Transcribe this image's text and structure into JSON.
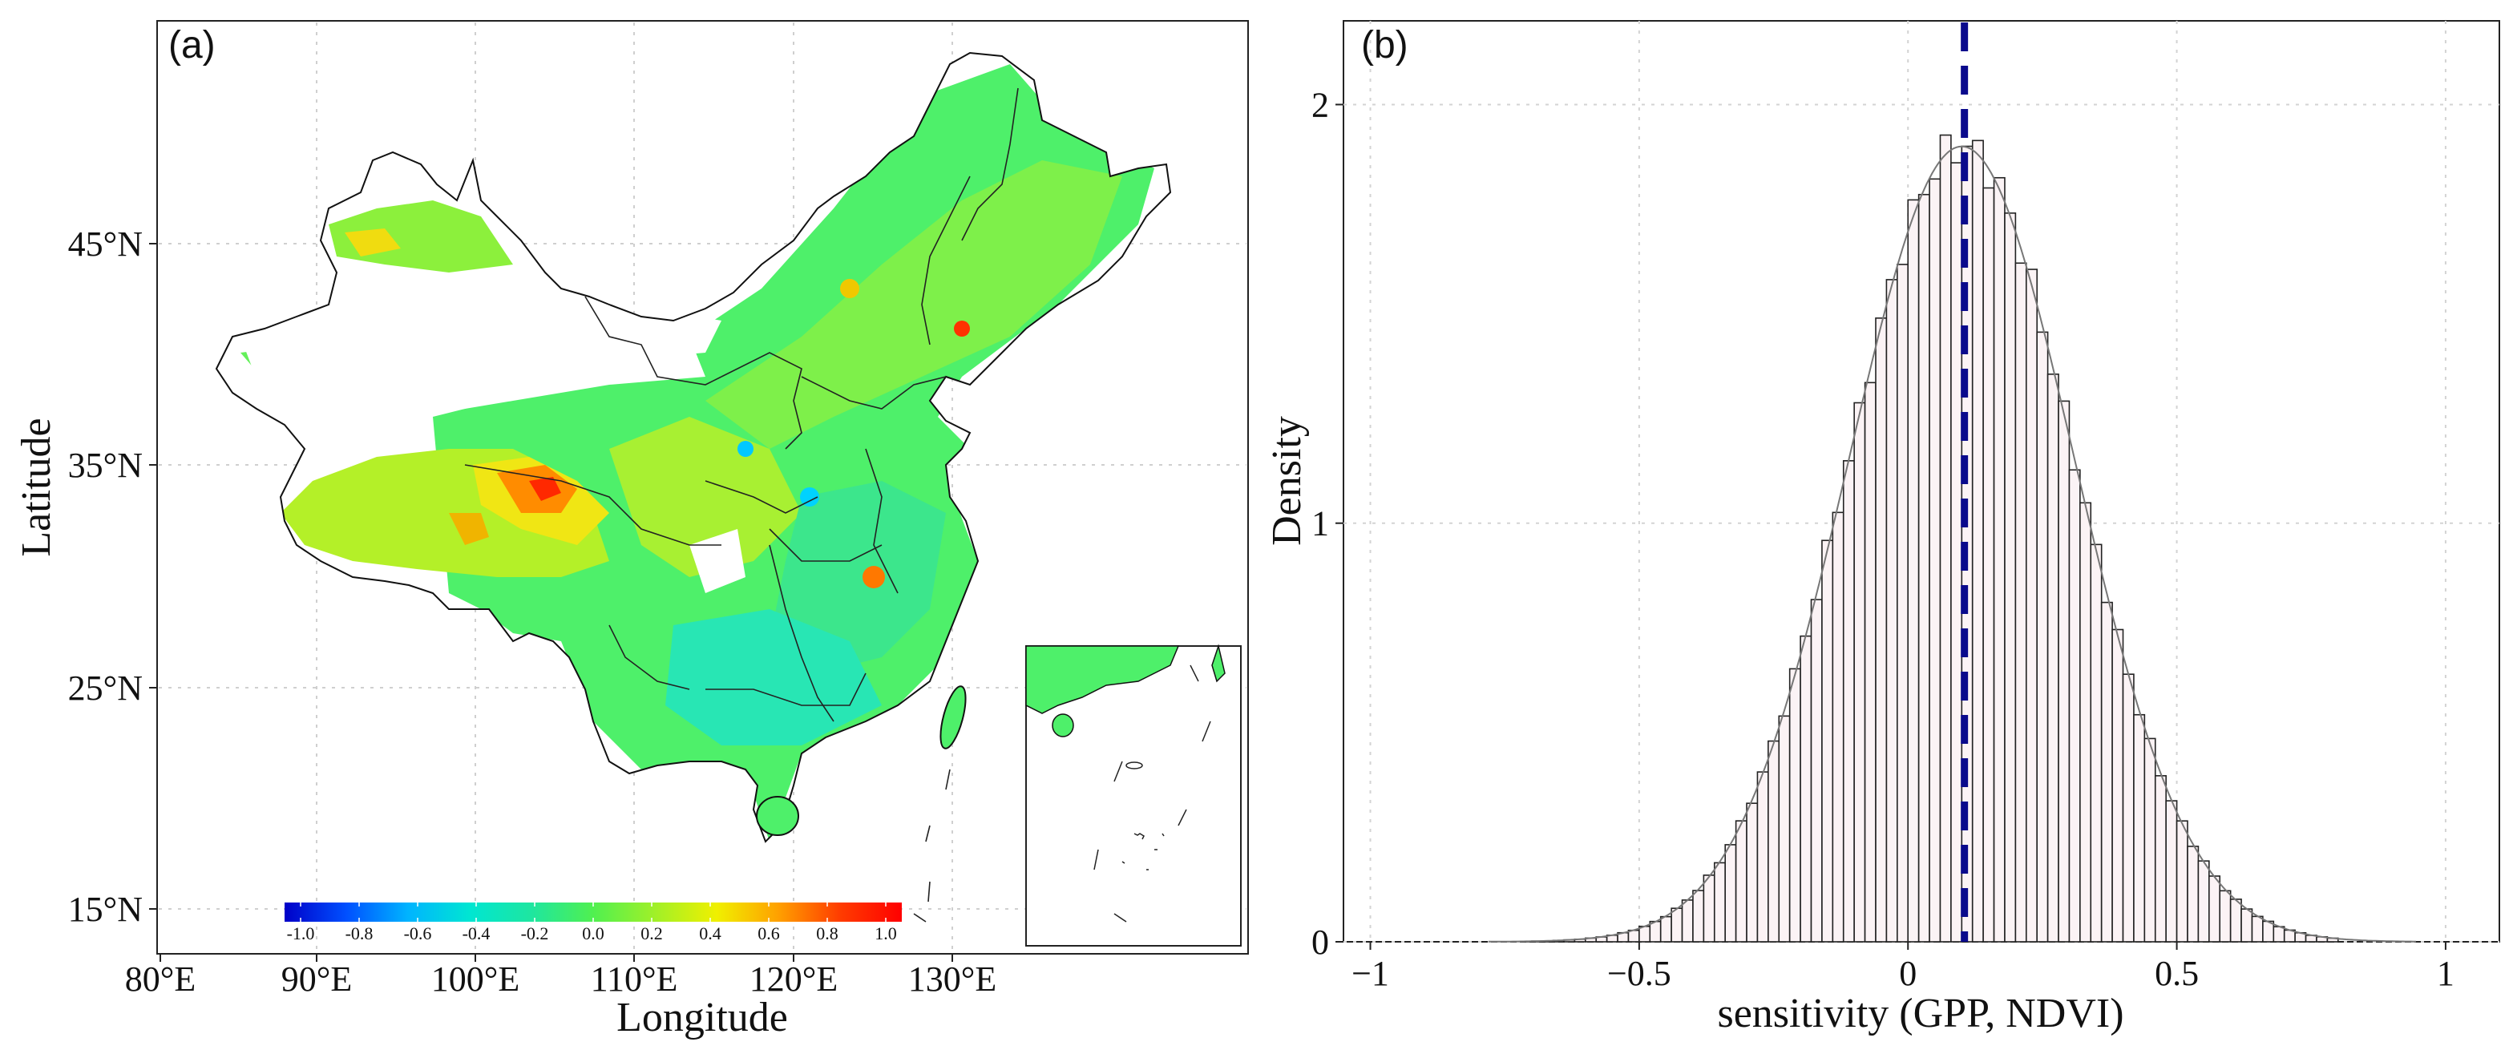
{
  "panel_a": {
    "label": "(a)",
    "x_ticks": [
      "80°E",
      "90°E",
      "100°E",
      "110°E",
      "120°E",
      "130°E"
    ],
    "y_ticks": [
      "15°N",
      "25°N",
      "35°N",
      "45°N"
    ],
    "xlabel": "Longitude",
    "ylabel": "Latitude",
    "colorbar": {
      "ticks": [
        "-1.0",
        "-0.8",
        "-0.6",
        "-0.4",
        "-0.2",
        "0.0",
        "0.2",
        "0.4",
        "0.6",
        "0.8",
        "1.0"
      ],
      "colors": [
        "#0000c8",
        "#0050ff",
        "#00b4ff",
        "#00e6d2",
        "#1ee6a0",
        "#50f050",
        "#a0f028",
        "#f0f000",
        "#ffa000",
        "#ff3c00",
        "#ff0000"
      ]
    }
  },
  "chart_data": {
    "type": "histogram",
    "panel_label": "(b)",
    "xlabel": "sensitivity (GPP, NDVI)",
    "ylabel": "Density",
    "xlim": [
      -1.05,
      1.1
    ],
    "ylim": [
      0,
      2.2
    ],
    "x_ticks": [
      -1,
      -0.5,
      0,
      0.5,
      1
    ],
    "x_tick_labels": [
      "−1",
      "−0.5",
      "0",
      "0.5",
      "1"
    ],
    "y_ticks": [
      0,
      1,
      2
    ],
    "y_tick_labels": [
      "0",
      "1",
      "2"
    ],
    "bins": {
      "start": -0.72,
      "width": 0.02,
      "count": 76
    },
    "distribution": {
      "mean": 0.1,
      "sd": 0.21,
      "peak_density": 1.9
    },
    "mean_line": {
      "x": 0.105,
      "color": "#0a0a8c"
    },
    "bar_fill": "#fbf3f5",
    "bar_stroke": "#222222",
    "density_curve_color": "#777777",
    "grid": true
  }
}
